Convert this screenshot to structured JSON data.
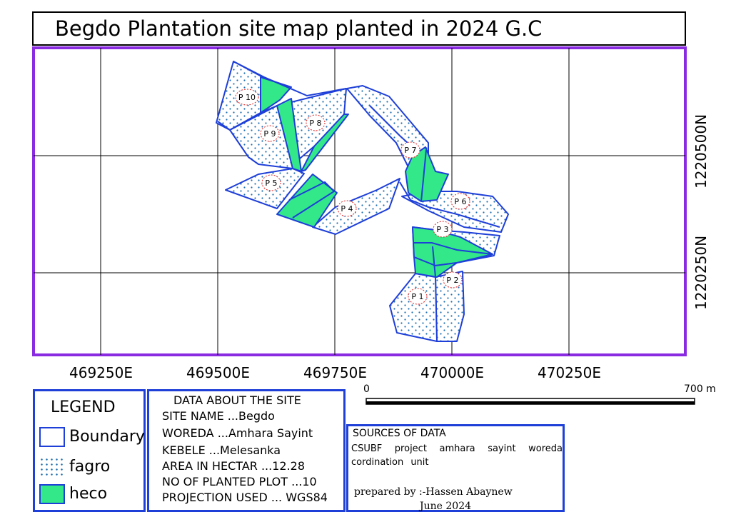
{
  "title": "Begdo Plantation site map planted in 2024 G.C",
  "colors": {
    "frame": "#8a2be2",
    "boundary": "#1e3fd8",
    "heco": "#33e889",
    "fagro_dot": "#1e6fb0"
  },
  "easting_labels": [
    "469250E",
    "469500E",
    "469750E",
    "470000E",
    "470250E"
  ],
  "northing_labels": [
    "1220500N",
    "1220250N"
  ],
  "plots": [
    "P 1",
    "P 2",
    "P 3",
    "P 4",
    "P 5",
    "P 6",
    "P 7",
    "P 8",
    "P 9",
    "P 10"
  ],
  "scale": {
    "start": "0",
    "end": "700 m"
  },
  "legend": {
    "title": "LEGEND",
    "items": [
      {
        "label": "Boundary",
        "symbol": "boundary"
      },
      {
        "label": "fagro",
        "symbol": "fagro"
      },
      {
        "label": "heco",
        "symbol": "heco"
      }
    ]
  },
  "site_info": {
    "title": "DATA ABOUT THE SITE",
    "lines": [
      "SITE NAME ...Begdo",
      "WOREDA ...Amhara Sayint",
      "KEBELE ...Melesanka",
      "AREA IN HECTAR ...12.28",
      "NO OF PLANTED PLOT ...10",
      "PROJECTION USED ... WGS84"
    ]
  },
  "sources": {
    "title": "SOURCES OF DATA",
    "text": "CSUBF project amhara sayint woreda cordination unit",
    "prepared_by": "prepared by :-Hassen Abaynew",
    "date": "June 2024"
  }
}
